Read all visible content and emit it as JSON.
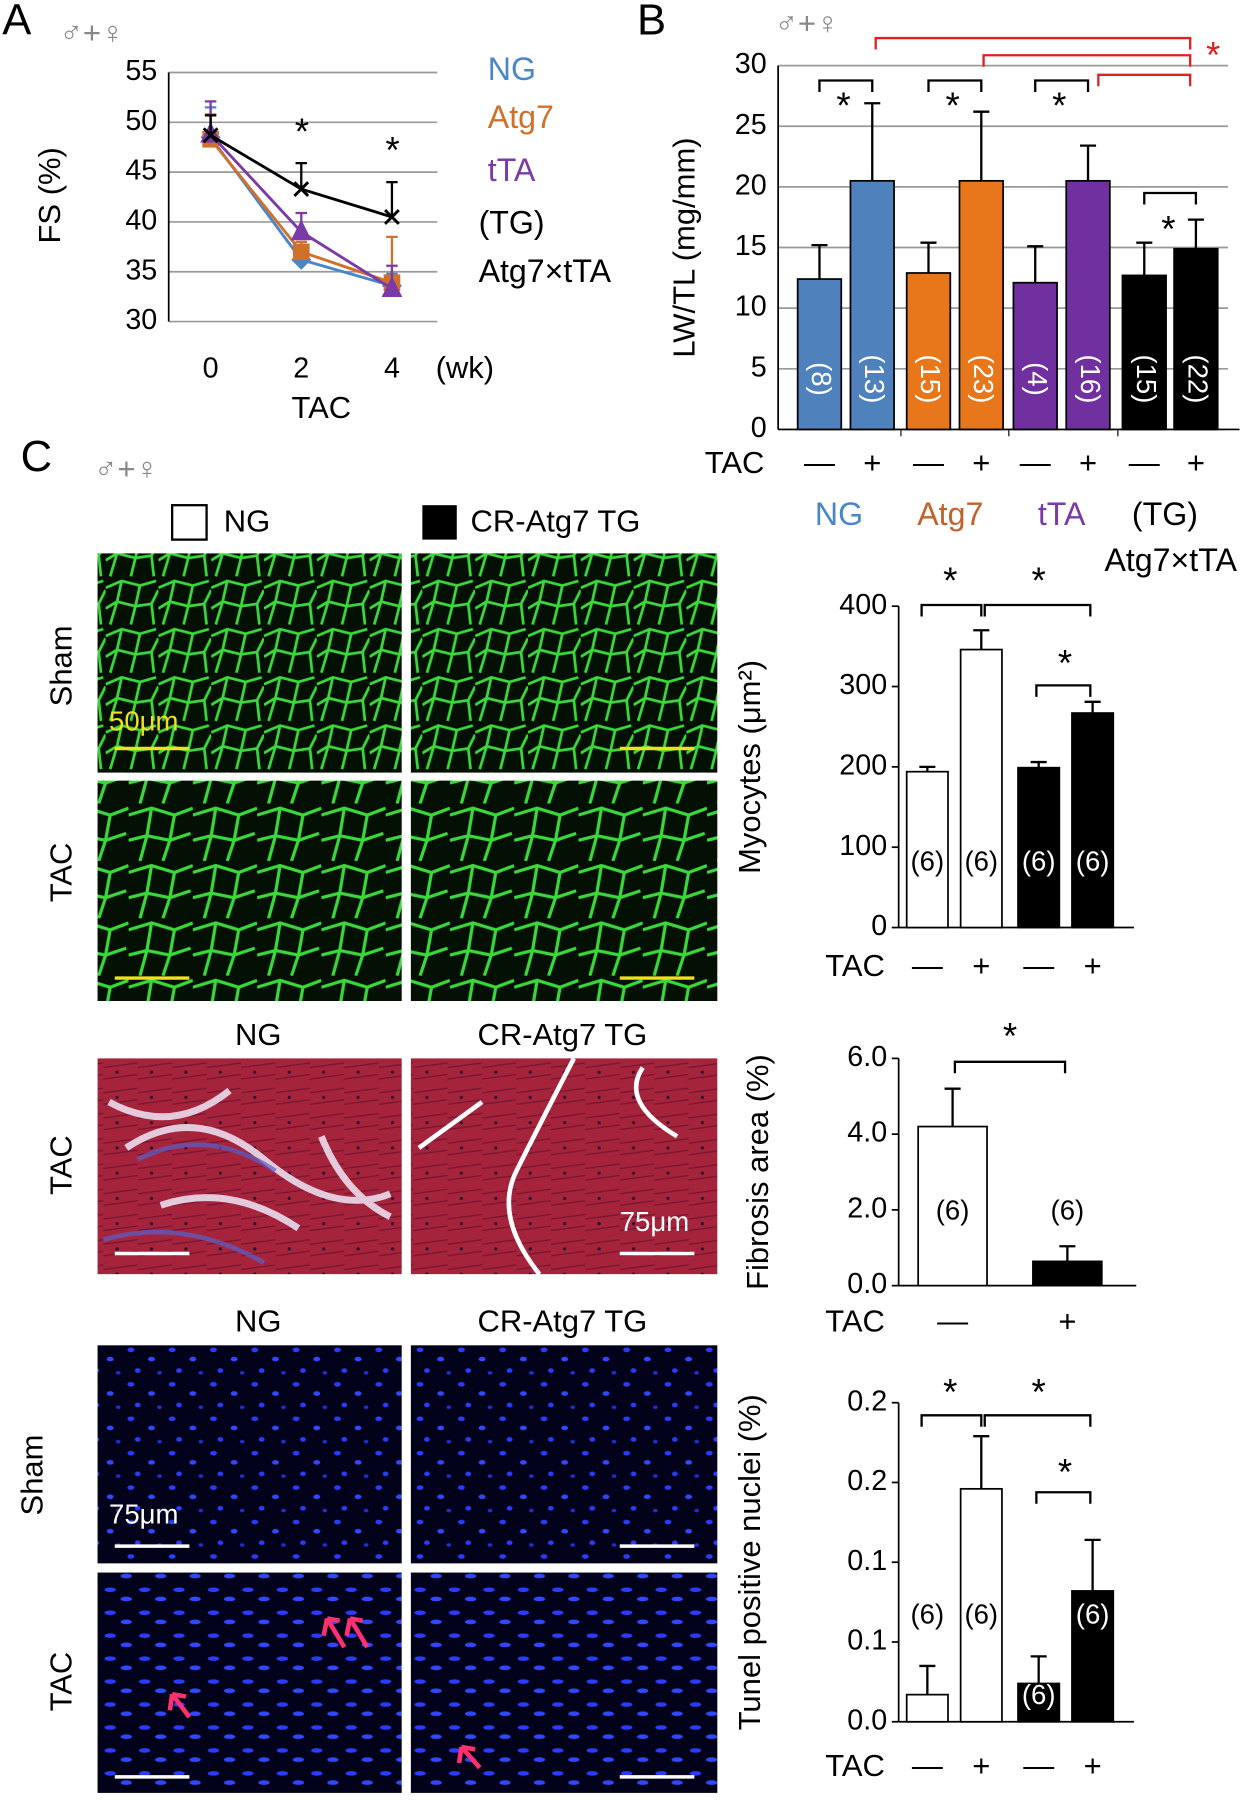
{
  "figure": {
    "panel_labels": [
      "A",
      "B",
      "C"
    ],
    "sex_label": "♂+♀"
  },
  "micrographs": {
    "legend": [
      "NG",
      "CR-Atg7 TG"
    ],
    "column_labels": [
      "NG",
      "CR-Atg7 TG"
    ],
    "row_labels": [
      "Sham",
      "TAC"
    ],
    "scale_bars": [
      "50μm",
      "75μm",
      "75μm"
    ]
  },
  "chart_data": [
    {
      "type": "line",
      "y_label": "FS (%)",
      "x_label": "TAC",
      "x_unit": "(wk)",
      "x": [
        0,
        2,
        4
      ],
      "xlim": [
        -1,
        5
      ],
      "xticks": [
        0,
        2,
        4
      ],
      "ylim": [
        30,
        55
      ],
      "yticks": [
        30,
        35,
        40,
        45,
        50,
        55
      ],
      "grid": true,
      "legend_note": "(TG)",
      "series": [
        {
          "name": "NG",
          "color": "#4a86c8",
          "marker": "diamond",
          "values": [
            48.5,
            36.2,
            33.6
          ],
          "errors": [
            3.0,
            0.8,
            1.2
          ]
        },
        {
          "name": "Atg7",
          "color": "#d0702a",
          "marker": "square",
          "values": [
            48.3,
            37.0,
            33.9
          ],
          "errors": [
            2.5,
            1.0,
            4.6
          ]
        },
        {
          "name": "tTA",
          "color": "#7a3aa8",
          "marker": "triangle",
          "values": [
            48.8,
            39.0,
            33.3
          ],
          "errors": [
            3.3,
            1.9,
            2.3
          ]
        },
        {
          "name": "Atg7×tTA",
          "color": "#000000",
          "marker": "x",
          "values": [
            48.7,
            43.3,
            40.5
          ],
          "errors": [
            2.0,
            2.6,
            3.5
          ]
        }
      ],
      "annotations": [
        "*",
        "*"
      ]
    },
    {
      "type": "bar",
      "y_label": "LW/TL (mg/mm)",
      "x_label": "TAC",
      "categories": [
        "—",
        "+",
        "—",
        "+",
        "—",
        "+",
        "—",
        "+"
      ],
      "values": [
        12.4,
        20.5,
        12.9,
        20.5,
        12.1,
        20.5,
        12.7,
        14.9
      ],
      "errors": [
        2.8,
        6.4,
        2.5,
        5.7,
        3.0,
        2.9,
        2.7,
        2.4
      ],
      "n_labels": [
        "(8)",
        "(13)",
        "(15)",
        "(23)",
        "(4)",
        "(16)",
        "(15)",
        "(22)"
      ],
      "colors": [
        "#4f81bd",
        "#4f81bd",
        "#e8761a",
        "#e8761a",
        "#7030a0",
        "#7030a0",
        "#000000",
        "#000000"
      ],
      "group_labels": [
        "NG",
        "Atg7",
        "tTA",
        "(TG)",
        "Atg7×tTA"
      ],
      "ylim": [
        0,
        30
      ],
      "yticks": [
        0,
        5,
        10,
        15,
        20,
        25,
        30
      ],
      "grid": true,
      "annotations": [
        "*",
        "*",
        "*",
        "*",
        "*"
      ]
    },
    {
      "type": "bar",
      "y_label": "Myocytes (μm²)",
      "x_label": "TAC",
      "categories": [
        "—",
        "+",
        "—",
        "+"
      ],
      "values": [
        194,
        346,
        199,
        267
      ],
      "errors": [
        6,
        24,
        7,
        14
      ],
      "n_labels": [
        "(6)",
        "(6)",
        "(6)",
        "(6)"
      ],
      "colors": [
        "#ffffff",
        "#ffffff",
        "#000000",
        "#000000"
      ],
      "ylim": [
        0,
        400
      ],
      "yticks": [
        0,
        100,
        200,
        300,
        400
      ],
      "grid": false,
      "annotations": [
        "*",
        "*",
        "*"
      ]
    },
    {
      "type": "bar",
      "y_label": "Fibrosis area (%)",
      "x_label": "TAC",
      "categories": [
        "—",
        "+"
      ],
      "values": [
        4.2,
        0.64
      ],
      "errors": [
        1.0,
        0.4
      ],
      "n_labels": [
        "(6)",
        "(6)"
      ],
      "colors": [
        "#ffffff",
        "#000000"
      ],
      "ylim": [
        0,
        6
      ],
      "yticks": [
        {
          "value": 0,
          "label": "0.0"
        },
        {
          "value": 2,
          "label": "2.0"
        },
        {
          "value": 4,
          "label": "4.0"
        },
        {
          "value": 6,
          "label": "6.0"
        }
      ],
      "grid": false,
      "annotations": [
        "*"
      ]
    },
    {
      "type": "bar",
      "y_label": "Tunel positive nuclei (%)",
      "x_label": "TAC",
      "categories": [
        "—",
        "+",
        "—",
        "+"
      ],
      "values": [
        0.017,
        0.146,
        0.024,
        0.082
      ],
      "errors": [
        0.018,
        0.033,
        0.017,
        0.032
      ],
      "n_labels": [
        "(6)",
        "(6)",
        "(6)",
        "(6)"
      ],
      "colors": [
        "#ffffff",
        "#ffffff",
        "#000000",
        "#000000"
      ],
      "ylim": [
        0,
        0.2
      ],
      "yticks": [
        {
          "value": 0,
          "label": "0.0"
        },
        {
          "value": 0.05,
          "label": "0.1"
        },
        0.1,
        {
          "value": 0.15,
          "label": "0.2"
        },
        0.2
      ],
      "grid": false,
      "annotations": [
        "*",
        "*",
        "*"
      ]
    }
  ]
}
